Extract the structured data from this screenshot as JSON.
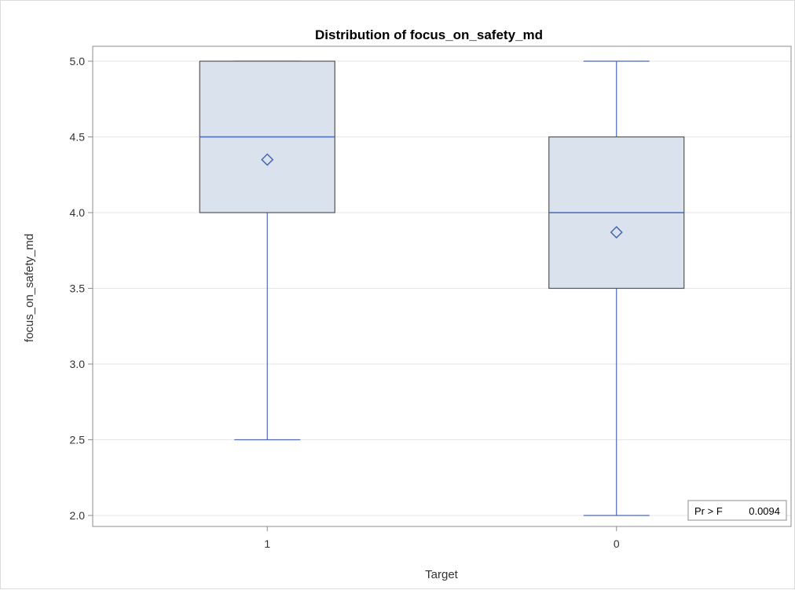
{
  "chart_data": {
    "type": "box",
    "title": "Distribution of focus_on_safety_md",
    "xlabel": "Target",
    "ylabel": "focus_on_safety_md",
    "categories": [
      "1",
      "0"
    ],
    "ylim": [
      2.0,
      5.0
    ],
    "yticks": [
      "2.0",
      "2.5",
      "3.0",
      "3.5",
      "4.0",
      "4.5",
      "5.0"
    ],
    "grid": "horizontal",
    "boxes": [
      {
        "category": "1",
        "min": 2.5,
        "q1": 4.0,
        "median": 4.5,
        "q3": 5.0,
        "max": 5.0,
        "mean": 4.35
      },
      {
        "category": "0",
        "min": 2.0,
        "q1": 3.5,
        "median": 4.0,
        "q3": 4.5,
        "max": 5.0,
        "mean": 3.87
      }
    ],
    "inset": {
      "label": "Pr > F",
      "value": "0.0094",
      "placement": "bottom-right"
    },
    "colors": {
      "box_fill": "#dae2ed",
      "box_stroke": "#555555",
      "whisker": "#4c68b4",
      "median": "#4c68b4",
      "mean_marker": "#4c68b4",
      "grid": "#e6e6e6",
      "frame": "#8c8c8c"
    }
  }
}
